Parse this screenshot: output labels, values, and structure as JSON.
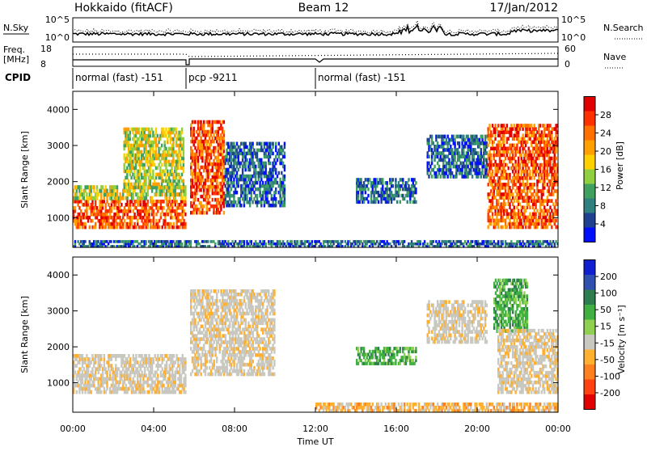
{
  "header": {
    "radar": "Hokkaido (fitACF)",
    "beam": "Beam 12",
    "date": "17/Jan/2012"
  },
  "aux": {
    "nsky_label": "N.Sky",
    "nsky_ticks": [
      "10^5",
      "10^0"
    ],
    "nsearch_label": "N.Search",
    "nsearch_ticks": [
      "10^5",
      "10^0"
    ],
    "freq_label_1": "Freq.",
    "freq_label_2": "[MHz]",
    "freq_ticks": [
      "18",
      "8"
    ],
    "nave_label": "Nave",
    "nave_ticks": [
      "60",
      "0"
    ],
    "cpid_label": "CPID"
  },
  "cpid_segments": [
    {
      "label": "normal (fast) -151",
      "start_hour": 0,
      "end_hour": 5.6
    },
    {
      "label": "pcp -9211",
      "start_hour": 5.6,
      "end_hour": 12.0
    },
    {
      "label": "normal (fast) -151",
      "start_hour": 12.0,
      "end_hour": 24.0
    }
  ],
  "chart_data": [
    {
      "type": "heatmap",
      "name": "power",
      "ylabel": "Slant Range [km]",
      "xlabel": "Time UT",
      "x_ticks": [
        "00:00",
        "04:00",
        "08:00",
        "12:00",
        "16:00",
        "20:00",
        "00:00"
      ],
      "x_tick_hours": [
        0,
        4,
        8,
        12,
        16,
        20,
        24
      ],
      "xlim_hours": [
        0,
        24
      ],
      "ylim_km": [
        180,
        4500
      ],
      "y_ticks": [
        1000,
        2000,
        3000,
        4000
      ],
      "colorbar_label": "Power [dB]",
      "colorbar_ticks": [
        "28",
        "24",
        "20",
        "16",
        "12",
        "8",
        "4"
      ],
      "colorbar_colors": [
        "#e00000",
        "#ff3000",
        "#ff7000",
        "#ffa000",
        "#ffd000",
        "#90d040",
        "#40a060",
        "#308080",
        "#204090",
        "#0010ff"
      ],
      "regions": [
        {
          "t0": 0.0,
          "t1": 5.6,
          "r0": 700,
          "r1": 1500,
          "level": "high"
        },
        {
          "t0": 0.0,
          "t1": 5.6,
          "r0": 1500,
          "r1": 1900,
          "level": "mid"
        },
        {
          "t0": 2.5,
          "t1": 5.5,
          "r0": 1800,
          "r1": 3500,
          "level": "mid"
        },
        {
          "t0": 5.8,
          "t1": 7.5,
          "r0": 1100,
          "r1": 3700,
          "level": "high"
        },
        {
          "t0": 7.5,
          "t1": 10.5,
          "r0": 1300,
          "r1": 3100,
          "level": "low"
        },
        {
          "t0": 14.0,
          "t1": 17.0,
          "r0": 1400,
          "r1": 2100,
          "level": "low"
        },
        {
          "t0": 17.5,
          "t1": 20.5,
          "r0": 2100,
          "r1": 3300,
          "level": "low"
        },
        {
          "t0": 20.5,
          "t1": 24.0,
          "r0": 700,
          "r1": 3600,
          "level": "high"
        },
        {
          "t0": 0.0,
          "t1": 24.0,
          "r0": 180,
          "r1": 380,
          "level": "low"
        }
      ]
    },
    {
      "type": "heatmap",
      "name": "velocity",
      "ylabel": "Slant Range [km]",
      "xlabel": "Time UT",
      "x_ticks": [
        "00:00",
        "04:00",
        "08:00",
        "12:00",
        "16:00",
        "20:00",
        "00:00"
      ],
      "x_tick_hours": [
        0,
        4,
        8,
        12,
        16,
        20,
        24
      ],
      "xlim_hours": [
        0,
        24
      ],
      "ylim_km": [
        180,
        4500
      ],
      "y_ticks": [
        1000,
        2000,
        3000,
        4000
      ],
      "colorbar_label": "Velocity [m s⁻¹]",
      "colorbar_ticks": [
        "200",
        "100",
        "50",
        "15",
        "-15",
        "-50",
        "-100",
        "-200"
      ],
      "colorbar_colors": [
        "#1020d0",
        "#3050b0",
        "#2e7d4f",
        "#40b040",
        "#90d050",
        "#c8c8c0",
        "#ffb030",
        "#ff8020",
        "#ff4010",
        "#e00000"
      ],
      "regions": [
        {
          "t0": 0.0,
          "t1": 5.6,
          "r0": 700,
          "r1": 1800,
          "level": "ground"
        },
        {
          "t0": 5.8,
          "t1": 10.0,
          "r0": 1200,
          "r1": 3600,
          "level": "ground"
        },
        {
          "t0": 14.0,
          "t1": 17.0,
          "r0": 1500,
          "r1": 2000,
          "level": "green"
        },
        {
          "t0": 17.5,
          "t1": 20.5,
          "r0": 2100,
          "r1": 3300,
          "level": "ground"
        },
        {
          "t0": 20.8,
          "t1": 22.5,
          "r0": 2400,
          "r1": 3900,
          "level": "green"
        },
        {
          "t0": 21.0,
          "t1": 24.0,
          "r0": 700,
          "r1": 2500,
          "level": "ground"
        },
        {
          "t0": 12.0,
          "t1": 24.0,
          "r0": 180,
          "r1": 450,
          "level": "orange"
        }
      ]
    }
  ]
}
